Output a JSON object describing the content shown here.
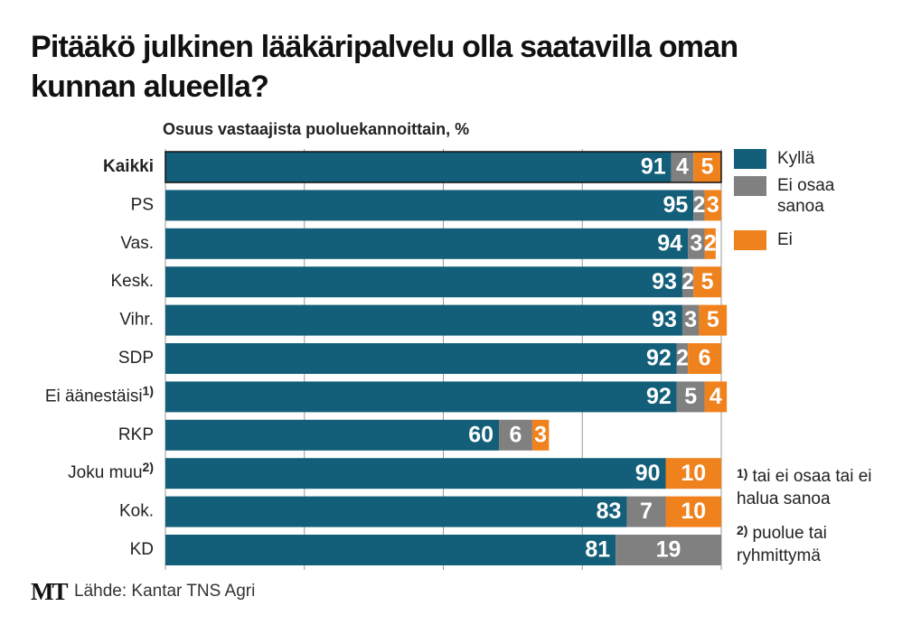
{
  "chart_data": {
    "type": "stacked-bar-horizontal",
    "title": "Pitääkö julkinen lääkäripalvelu olla saatavilla oman kunnan alueella?",
    "subtitle": "Osuus vastaajista puoluekannoittain, %",
    "categories": [
      "Kaikki",
      "PS",
      "Vas.",
      "Kesk.",
      "Vihr.",
      "SDP",
      "Ei äänestäisi",
      "RKP",
      "Joku muu",
      "Kok.",
      "KD"
    ],
    "category_notes": [
      null,
      null,
      null,
      null,
      null,
      null,
      "1)",
      null,
      "2)",
      null,
      null
    ],
    "series": [
      {
        "name": "Kyllä",
        "color": "#135f7a",
        "values": [
          91,
          95,
          94,
          93,
          93,
          92,
          92,
          60,
          90,
          83,
          81
        ]
      },
      {
        "name": "Ei osaa sanoa",
        "color": "#808080",
        "values": [
          4,
          2,
          3,
          2,
          3,
          2,
          5,
          6,
          null,
          7,
          19
        ]
      },
      {
        "name": "Ei",
        "color": "#f0821e",
        "values": [
          5,
          3,
          2,
          5,
          5,
          6,
          4,
          3,
          10,
          10,
          null
        ]
      }
    ],
    "xlim": [
      0,
      100
    ],
    "xticks": [
      0,
      25,
      50,
      75,
      100
    ],
    "grid": true,
    "footnotes": [
      {
        "marker": "1)",
        "text": "tai ei osaa tai ei halua sanoa"
      },
      {
        "marker": "2)",
        "text": "puolue tai ryhmittymä"
      }
    ],
    "logo": "MT",
    "source": "Lähde: Kantar TNS Agri"
  }
}
